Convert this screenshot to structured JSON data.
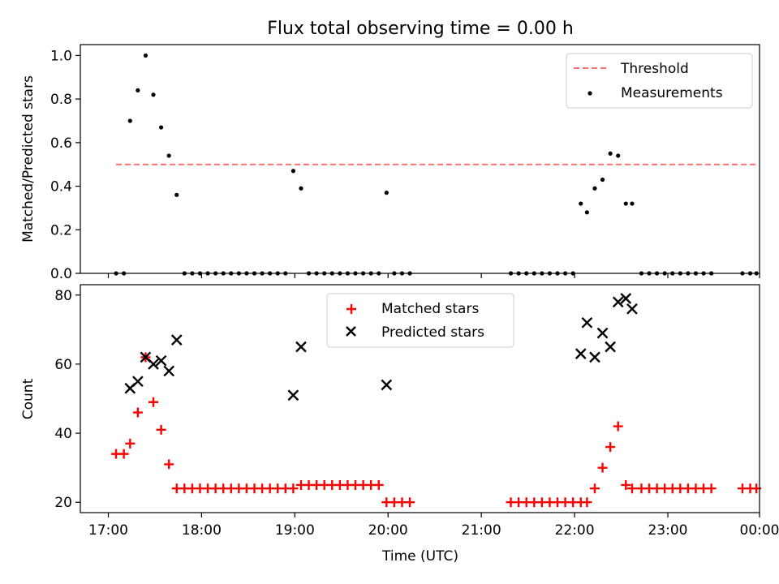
{
  "figure_title": "Flux total observing time = 0.00 h",
  "chart_data": [
    {
      "type": "scatter",
      "panel": "top",
      "ylabel": "Matched/Predicted stars",
      "xlabel": "",
      "ylim": [
        0.0,
        1.05
      ],
      "xlim": [
        "16:42",
        "23:59"
      ],
      "yticks": [
        0.0,
        0.2,
        0.4,
        0.6,
        0.8,
        1.0
      ],
      "ytick_labels": [
        "0.0",
        "0.2",
        "0.4",
        "0.6",
        "0.8",
        "1.0"
      ],
      "grid": false,
      "legend_position": "top-right",
      "legend": [
        "Threshold",
        "Measurements"
      ],
      "threshold": {
        "name": "Threshold",
        "value": 0.5,
        "x_start": "17:05",
        "x_end": "23:57",
        "color": "#ff7070",
        "style": "dashed"
      },
      "series": [
        {
          "name": "Measurements",
          "marker": "dot",
          "color": "#000000",
          "points": [
            [
              "17:05",
              0
            ],
            [
              "17:10",
              0
            ],
            [
              "17:14",
              0.7
            ],
            [
              "17:19",
              0.84
            ],
            [
              "17:24",
              1.0
            ],
            [
              "17:29",
              0.82
            ],
            [
              "17:34",
              0.67
            ],
            [
              "17:39",
              0.54
            ],
            [
              "17:44",
              0.36
            ],
            [
              "17:49",
              0
            ],
            [
              "17:54",
              0
            ],
            [
              "17:59",
              0
            ],
            [
              "18:04",
              0
            ],
            [
              "18:09",
              0
            ],
            [
              "18:14",
              0
            ],
            [
              "18:19",
              0
            ],
            [
              "18:24",
              0
            ],
            [
              "18:29",
              0
            ],
            [
              "18:34",
              0
            ],
            [
              "18:39",
              0
            ],
            [
              "18:44",
              0
            ],
            [
              "18:49",
              0
            ],
            [
              "18:54",
              0
            ],
            [
              "18:59",
              0.47
            ],
            [
              "19:04",
              0.39
            ],
            [
              "19:09",
              0
            ],
            [
              "19:14",
              0
            ],
            [
              "19:19",
              0
            ],
            [
              "19:24",
              0
            ],
            [
              "19:29",
              0
            ],
            [
              "19:34",
              0
            ],
            [
              "19:39",
              0
            ],
            [
              "19:44",
              0
            ],
            [
              "19:49",
              0
            ],
            [
              "19:54",
              0
            ],
            [
              "19:59",
              0.37
            ],
            [
              "20:04",
              0
            ],
            [
              "20:09",
              0
            ],
            [
              "20:14",
              0
            ],
            [
              "21:19",
              0
            ],
            [
              "21:24",
              0
            ],
            [
              "21:29",
              0
            ],
            [
              "21:34",
              0
            ],
            [
              "21:39",
              0
            ],
            [
              "21:44",
              0
            ],
            [
              "21:49",
              0
            ],
            [
              "21:54",
              0
            ],
            [
              "21:59",
              0
            ],
            [
              "22:04",
              0.32
            ],
            [
              "22:08",
              0.28
            ],
            [
              "22:13",
              0.39
            ],
            [
              "22:18",
              0.43
            ],
            [
              "22:23",
              0.55
            ],
            [
              "22:28",
              0.54
            ],
            [
              "22:33",
              0.32
            ],
            [
              "22:37",
              0.32
            ],
            [
              "22:43",
              0
            ],
            [
              "22:48",
              0
            ],
            [
              "22:53",
              0
            ],
            [
              "22:58",
              0
            ],
            [
              "23:03",
              0
            ],
            [
              "23:08",
              0
            ],
            [
              "23:13",
              0
            ],
            [
              "23:18",
              0
            ],
            [
              "23:23",
              0
            ],
            [
              "23:28",
              0
            ],
            [
              "23:48",
              0
            ],
            [
              "23:53",
              0
            ],
            [
              "23:57",
              0
            ]
          ]
        }
      ]
    },
    {
      "type": "scatter",
      "panel": "bottom",
      "ylabel": "Count",
      "xlabel": "Time (UTC)",
      "ylim": [
        17,
        83
      ],
      "xlim": [
        "16:42",
        "23:59"
      ],
      "yticks": [
        20,
        40,
        60,
        80
      ],
      "ytick_labels": [
        "20",
        "40",
        "60",
        "80"
      ],
      "xticks": [
        "17:00",
        "18:00",
        "19:00",
        "20:00",
        "21:00",
        "22:00",
        "23:00",
        "23:59"
      ],
      "xtick_labels": [
        "17:00",
        "18:00",
        "19:00",
        "20:00",
        "21:00",
        "22:00",
        "23:00",
        "00:00"
      ],
      "grid": false,
      "legend_position": "top-center",
      "legend": [
        "Matched stars",
        "Predicted stars"
      ],
      "series": [
        {
          "name": "Matched stars",
          "marker": "plus",
          "color": "#ff0000",
          "points": [
            [
              "17:05",
              34
            ],
            [
              "17:10",
              34
            ],
            [
              "17:14",
              37
            ],
            [
              "17:19",
              46
            ],
            [
              "17:24",
              62
            ],
            [
              "17:29",
              49
            ],
            [
              "17:34",
              41
            ],
            [
              "17:39",
              31
            ],
            [
              "17:44",
              24
            ],
            [
              "17:49",
              24
            ],
            [
              "17:54",
              24
            ],
            [
              "17:59",
              24
            ],
            [
              "18:04",
              24
            ],
            [
              "18:09",
              24
            ],
            [
              "18:14",
              24
            ],
            [
              "18:19",
              24
            ],
            [
              "18:24",
              24
            ],
            [
              "18:29",
              24
            ],
            [
              "18:34",
              24
            ],
            [
              "18:39",
              24
            ],
            [
              "18:44",
              24
            ],
            [
              "18:49",
              24
            ],
            [
              "18:54",
              24
            ],
            [
              "18:59",
              24
            ],
            [
              "19:04",
              25
            ],
            [
              "19:09",
              25
            ],
            [
              "19:14",
              25
            ],
            [
              "19:19",
              25
            ],
            [
              "19:24",
              25
            ],
            [
              "19:29",
              25
            ],
            [
              "19:34",
              25
            ],
            [
              "19:39",
              25
            ],
            [
              "19:44",
              25
            ],
            [
              "19:49",
              25
            ],
            [
              "19:54",
              25
            ],
            [
              "19:59",
              20
            ],
            [
              "20:04",
              20
            ],
            [
              "20:09",
              20
            ],
            [
              "20:14",
              20
            ],
            [
              "21:19",
              20
            ],
            [
              "21:24",
              20
            ],
            [
              "21:29",
              20
            ],
            [
              "21:34",
              20
            ],
            [
              "21:39",
              20
            ],
            [
              "21:44",
              20
            ],
            [
              "21:49",
              20
            ],
            [
              "21:54",
              20
            ],
            [
              "21:59",
              20
            ],
            [
              "22:04",
              20
            ],
            [
              "22:08",
              20
            ],
            [
              "22:13",
              24
            ],
            [
              "22:18",
              30
            ],
            [
              "22:23",
              36
            ],
            [
              "22:28",
              42
            ],
            [
              "22:33",
              25
            ],
            [
              "22:37",
              24
            ],
            [
              "22:43",
              24
            ],
            [
              "22:48",
              24
            ],
            [
              "22:53",
              24
            ],
            [
              "22:58",
              24
            ],
            [
              "23:03",
              24
            ],
            [
              "23:08",
              24
            ],
            [
              "23:13",
              24
            ],
            [
              "23:18",
              24
            ],
            [
              "23:23",
              24
            ],
            [
              "23:28",
              24
            ],
            [
              "23:48",
              24
            ],
            [
              "23:53",
              24
            ],
            [
              "23:57",
              24
            ]
          ]
        },
        {
          "name": "Predicted stars",
          "marker": "x",
          "color": "#000000",
          "points": [
            [
              "17:14",
              53
            ],
            [
              "17:19",
              55
            ],
            [
              "17:24",
              62
            ],
            [
              "17:29",
              60
            ],
            [
              "17:34",
              61
            ],
            [
              "17:39",
              58
            ],
            [
              "17:44",
              67
            ],
            [
              "18:59",
              51
            ],
            [
              "19:04",
              65
            ],
            [
              "19:59",
              54
            ],
            [
              "22:04",
              63
            ],
            [
              "22:08",
              72
            ],
            [
              "22:13",
              62
            ],
            [
              "22:18",
              69
            ],
            [
              "22:23",
              65
            ],
            [
              "22:28",
              78
            ],
            [
              "22:33",
              79
            ],
            [
              "22:37",
              76
            ]
          ]
        }
      ]
    }
  ]
}
